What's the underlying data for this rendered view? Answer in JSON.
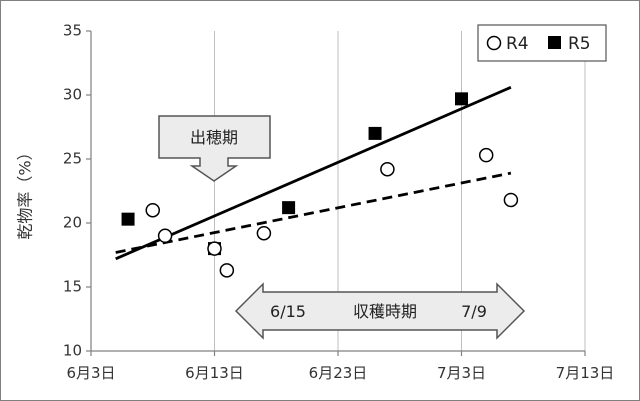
{
  "chart_data": {
    "type": "scatter",
    "ylabel": "乾物率（%）",
    "xlabel": "",
    "ylim": [
      10,
      35
    ],
    "yticks": [
      10,
      15,
      20,
      25,
      30,
      35
    ],
    "xlim_days": [
      0,
      40
    ],
    "xticks": [
      {
        "day": 0,
        "label": "6月3日"
      },
      {
        "day": 10,
        "label": "6月13日"
      },
      {
        "day": 20,
        "label": "6月23日"
      },
      {
        "day": 30,
        "label": "7月3日"
      },
      {
        "day": 40,
        "label": "7月13日"
      }
    ],
    "grid": {
      "vertical": true,
      "horizontal": false
    },
    "legend_position": "top-right",
    "series": [
      {
        "name": "R4",
        "marker": "open-circle",
        "points": [
          {
            "date": "6/8",
            "day": 5,
            "y": 21.0
          },
          {
            "date": "6/9",
            "day": 6,
            "y": 19.0
          },
          {
            "date": "6/13",
            "day": 10,
            "y": 18.0
          },
          {
            "date": "6/14",
            "day": 11,
            "y": 16.3
          },
          {
            "date": "6/17",
            "day": 14,
            "y": 19.2
          },
          {
            "date": "6/27",
            "day": 24,
            "y": 24.2
          },
          {
            "date": "7/5",
            "day": 32,
            "y": 25.3
          },
          {
            "date": "7/7",
            "day": 34,
            "y": 21.8
          }
        ],
        "trendline": {
          "style": "dashed",
          "from": {
            "day": 2,
            "y": 17.7
          },
          "to": {
            "day": 34,
            "y": 23.9
          }
        }
      },
      {
        "name": "R5",
        "marker": "filled-square",
        "points": [
          {
            "date": "6/6",
            "day": 3,
            "y": 20.3
          },
          {
            "date": "6/13",
            "day": 10,
            "y": 18.0
          },
          {
            "date": "6/19",
            "day": 16,
            "y": 21.2
          },
          {
            "date": "6/26",
            "day": 23,
            "y": 27.0
          },
          {
            "date": "7/3",
            "day": 30,
            "y": 29.7
          }
        ],
        "trendline": {
          "style": "solid",
          "from": {
            "day": 2,
            "y": 17.2
          },
          "to": {
            "day": 34,
            "y": 30.6
          }
        }
      }
    ],
    "annotations": {
      "heading_label": "出穂期",
      "harvest_label": "収穫時期",
      "harvest_start": "6/15",
      "harvest_end": "7/9"
    }
  },
  "colors": {
    "axis": "#808080",
    "grid": "#bfbfbf",
    "r5_fill": "#000000",
    "r4_stroke": "#000000",
    "arrow_fill": "#ececec",
    "arrow_stroke": "#555555"
  }
}
